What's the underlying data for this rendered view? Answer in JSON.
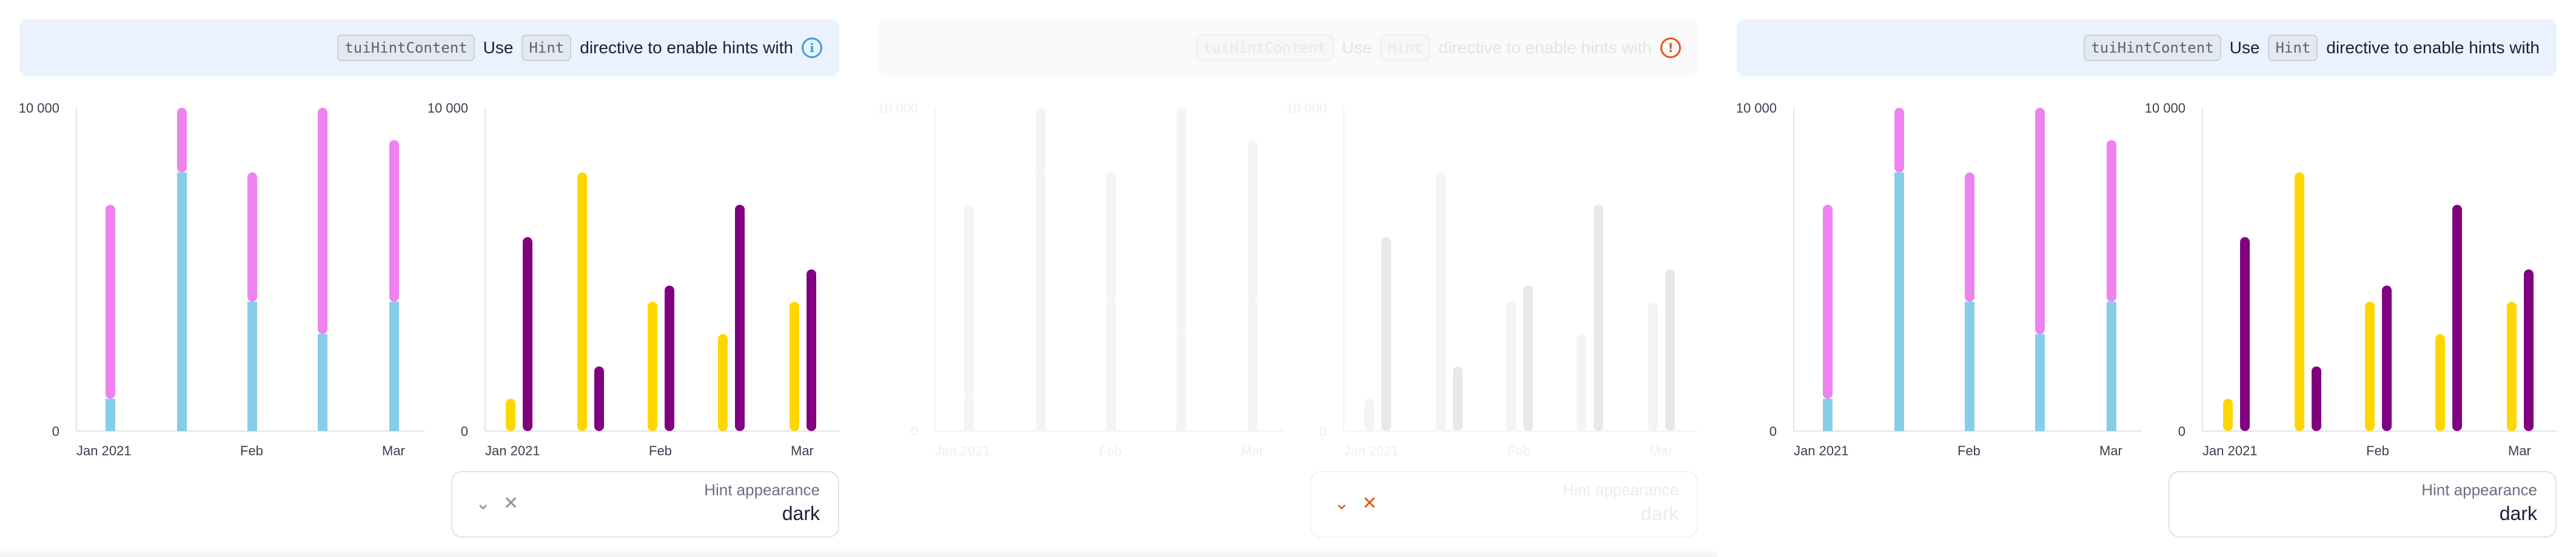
{
  "banner": {
    "code_label": "tuiHintContent",
    "text_use": "Use",
    "hint_code": "Hint",
    "text_rest": "directive to enable hints with",
    "info_glyph": "i",
    "alert_glyph": "!"
  },
  "hint_select": {
    "label": "Hint appearance",
    "value": "dark",
    "chevron_glyph": "⌄",
    "clear_glyph": "✕"
  },
  "colors": {
    "stack_bottom": "#86cde6",
    "stack_top": "#ee82ee",
    "series_a": "#ffd700",
    "series_b": "#800080",
    "disabled_light": "#f4f4f4",
    "disabled_dark": "#e8e8e8",
    "alert": "#e3571b"
  },
  "chart_data": [
    {
      "type": "bar",
      "stacked": true,
      "y_label_top": "10 000",
      "y_label_zero": "0",
      "ylim": [
        0,
        10000
      ],
      "x_labels": [
        "Jan 2021",
        "Feb",
        "Mar"
      ],
      "x_label_positions": [
        0,
        2,
        4
      ],
      "categories": 5,
      "series": [
        {
          "values": [
            1000,
            8000,
            4000,
            3000,
            4000
          ]
        },
        {
          "values": [
            6000,
            2000,
            4000,
            7000,
            5000
          ]
        }
      ]
    },
    {
      "type": "bar",
      "stacked": false,
      "y_label_top": "10 000",
      "y_label_zero": "0",
      "ylim": [
        0,
        10000
      ],
      "x_labels": [
        "Jan 2021",
        "Feb",
        "Mar"
      ],
      "x_label_positions": [
        0,
        2,
        4
      ],
      "categories": 5,
      "series": [
        {
          "values": [
            1000,
            8000,
            4000,
            3000,
            4000
          ]
        },
        {
          "values": [
            6000,
            2000,
            4500,
            7000,
            5000
          ]
        }
      ]
    }
  ]
}
